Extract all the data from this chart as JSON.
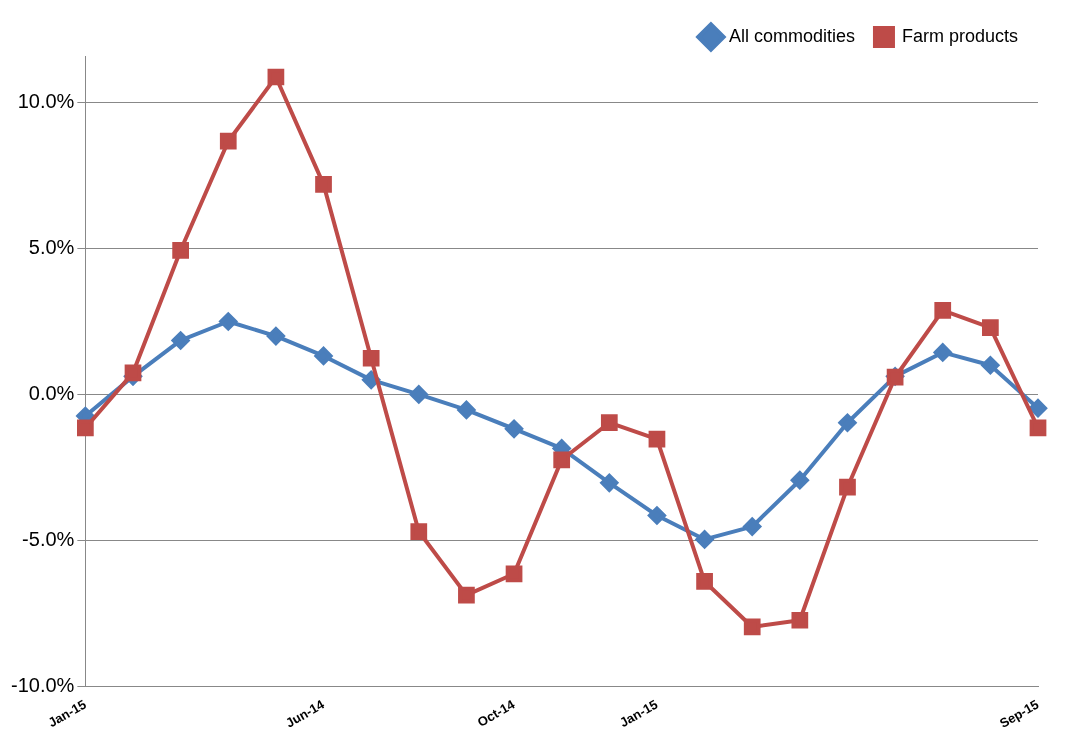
{
  "chart_data": {
    "type": "line",
    "categories": [
      "Jan-15",
      null,
      null,
      null,
      null,
      "Jun-14",
      null,
      null,
      null,
      "Oct-14",
      null,
      null,
      "Jan-15",
      null,
      null,
      null,
      null,
      null,
      null,
      null,
      "Sep-15"
    ],
    "series": [
      {
        "name": "All commodities",
        "color": "#4a7ebb",
        "marker": "diamond",
        "values": [
          -0.74,
          0.62,
          1.85,
          2.5,
          2.0,
          1.32,
          0.5,
          0.0,
          -0.53,
          -1.18,
          -1.85,
          -3.03,
          -4.15,
          -4.97,
          -4.53,
          -2.94,
          -0.97,
          0.62,
          1.44,
          1.0,
          -0.47
        ]
      },
      {
        "name": "Farm products",
        "color": "#be4b48",
        "marker": "square",
        "values": [
          -1.15,
          0.74,
          4.94,
          8.68,
          10.88,
          7.2,
          1.24,
          -4.7,
          -6.88,
          -6.15,
          -2.24,
          -0.97,
          -1.53,
          -6.41,
          -7.97,
          -7.74,
          -3.18,
          0.59,
          2.88,
          2.29,
          -1.15
        ]
      }
    ],
    "ylim": [
      -10,
      11.6
    ],
    "yticks": [
      {
        "value": -10,
        "label": "-10.0%"
      },
      {
        "value": -5,
        "label": "-5.0%"
      },
      {
        "value": 0,
        "label": "0.0%"
      },
      {
        "value": 5,
        "label": "5.0%"
      },
      {
        "value": 10,
        "label": "10.0%"
      }
    ],
    "grid": "y",
    "legend": "top right",
    "line_style": "solid"
  }
}
